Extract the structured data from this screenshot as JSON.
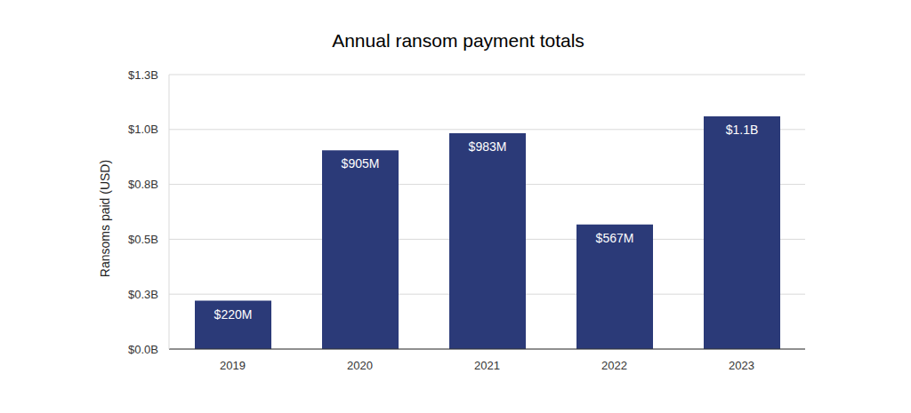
{
  "chart_data": {
    "type": "bar",
    "title": "Annual ransom payment totals",
    "y_label": "Ransoms paid (USD)",
    "categories": [
      "2019",
      "2020",
      "2021",
      "2022",
      "2023"
    ],
    "values": [
      0.22,
      0.905,
      0.983,
      0.567,
      1.06
    ],
    "value_labels": [
      "$220M",
      "$905M",
      "$983M",
      "$567M",
      "$1.1B"
    ],
    "data_labels": true,
    "color": "#2b3a78",
    "ylim": [
      0,
      1.25
    ],
    "yticks": [
      {
        "value": 0,
        "label": "$0.0B"
      },
      {
        "value": 0.25,
        "label": "$0.3B"
      },
      {
        "value": 0.5,
        "label": "$0.5B"
      },
      {
        "value": 0.75,
        "label": "$0.8B"
      },
      {
        "value": 1.0,
        "label": "$1.0B"
      },
      {
        "value": 1.25,
        "label": "$1.3B"
      }
    ],
    "grid": true
  }
}
